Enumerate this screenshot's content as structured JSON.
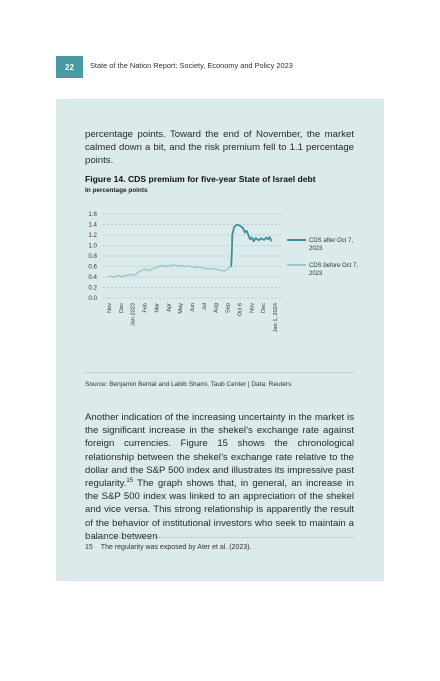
{
  "header": {
    "page_number": "22",
    "running_title": "State of the Nation Report: Society, Economy and Policy 2023"
  },
  "paragraph_top": "percentage points. Toward the end of November, the market calmed down a bit, and the risk premium fell to 1.1 percentage points.",
  "figure": {
    "title": "Figure 14. CDS premium for five-year State of Israel debt",
    "subtitle": "In percentage points",
    "source": "Source: Benjamin Bental and Labib Shami, Taub Center | Data: Reuters"
  },
  "chart_data": {
    "type": "line",
    "ylim": [
      0,
      1.6
    ],
    "y_ticks": [
      "1.6",
      "1.4",
      "1.2",
      "1.0",
      "0.8",
      "0.6",
      "0.4",
      "0.2",
      "0.0"
    ],
    "x_tick_labels": [
      "Nov",
      "Dec",
      "Jan 2023",
      "Feb",
      "Mar",
      "Apr",
      "May",
      "Jun",
      "Jul",
      "Aug",
      "Sep",
      "Oct 6",
      "Nov",
      "Dec",
      "Jan 1, 2024"
    ],
    "grid": "horizontal dashed",
    "legend_position": "right",
    "series": [
      {
        "name": "CDS after Oct 7, 2023",
        "color": "#3f8d99",
        "x": [
          10.3,
          10.35,
          10.4,
          10.55,
          10.7,
          10.85,
          11.0,
          11.15,
          11.3,
          11.45,
          11.6,
          11.75,
          11.9,
          12.05,
          12.2,
          12.35,
          12.5,
          12.65,
          12.8,
          12.95,
          13.1,
          13.25,
          13.4,
          13.55,
          13.7
        ],
        "values": [
          0.6,
          0.85,
          1.2,
          1.35,
          1.38,
          1.4,
          1.38,
          1.36,
          1.33,
          1.25,
          1.28,
          1.2,
          1.12,
          1.15,
          1.08,
          1.14,
          1.12,
          1.1,
          1.14,
          1.12,
          1.11,
          1.15,
          1.12,
          1.16,
          1.08
        ]
      },
      {
        "name": "CDS before Oct 7, 2023",
        "color": "#9ac6cd",
        "x": [
          0,
          0.3,
          0.6,
          0.9,
          1.1,
          1.3,
          1.6,
          1.9,
          2.1,
          2.3,
          2.5,
          2.8,
          3.1,
          3.4,
          3.7,
          4.0,
          4.3,
          4.6,
          4.9,
          5.2,
          5.5,
          5.8,
          6.1,
          6.4,
          6.7,
          7.0,
          7.3,
          7.6,
          7.9,
          8.2,
          8.5,
          8.8,
          9.1,
          9.4,
          9.7,
          10.0,
          10.3
        ],
        "values": [
          0.42,
          0.4,
          0.41,
          0.43,
          0.4,
          0.42,
          0.44,
          0.45,
          0.43,
          0.46,
          0.5,
          0.53,
          0.55,
          0.52,
          0.56,
          0.58,
          0.61,
          0.62,
          0.6,
          0.62,
          0.63,
          0.61,
          0.62,
          0.6,
          0.61,
          0.59,
          0.58,
          0.6,
          0.57,
          0.56,
          0.55,
          0.56,
          0.54,
          0.53,
          0.51,
          0.55,
          0.6
        ]
      }
    ]
  },
  "paragraph_bottom": {
    "text_before_ref": "Another indication of the increasing uncertainty in the market is the significant increase in the shekel’s exchange rate against foreign currencies. Figure 15 shows the chronological relationship between the shekel’s exchange rate relative to the dollar and the S&P 500 index and illustrates its impressive past regularity.",
    "footnote_ref": "15",
    "text_after_ref": " The graph shows that, in general, an increase in the S&P 500 index was linked to an appreciation of the shekel and vice versa. This strong relationship is apparently the result of the behavior of institutional investors who seek to maintain a balance between"
  },
  "footnote": {
    "number": "15",
    "text": "The regularity was exposed by Ater et al. (2023)."
  }
}
